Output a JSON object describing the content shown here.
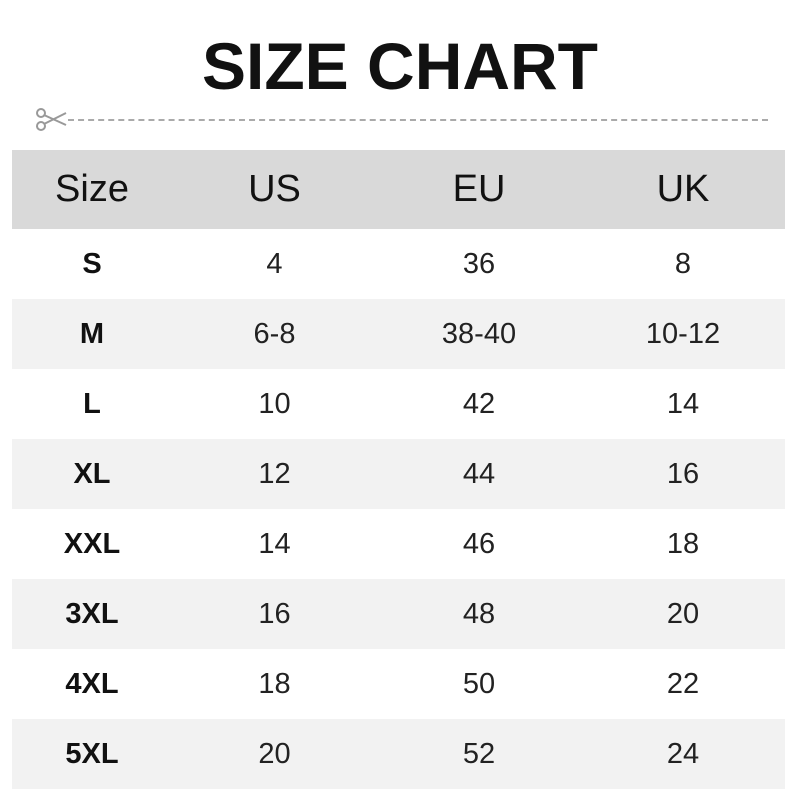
{
  "title": "SIZE CHART",
  "colors": {
    "header_bg": "#d9d9d9",
    "alt_row_bg": "#f2f2f2"
  },
  "icons": {
    "cut_line": "scissors-icon"
  },
  "table": {
    "headers": [
      "Size",
      "US",
      "EU",
      "UK"
    ],
    "rows": [
      [
        "S",
        "4",
        "36",
        "8"
      ],
      [
        "M",
        "6-8",
        "38-40",
        "10-12"
      ],
      [
        "L",
        "10",
        "42",
        "14"
      ],
      [
        "XL",
        "12",
        "44",
        "16"
      ],
      [
        "XXL",
        "14",
        "46",
        "18"
      ],
      [
        "3XL",
        "16",
        "48",
        "20"
      ],
      [
        "4XL",
        "18",
        "50",
        "22"
      ],
      [
        "5XL",
        "20",
        "52",
        "24"
      ]
    ]
  }
}
